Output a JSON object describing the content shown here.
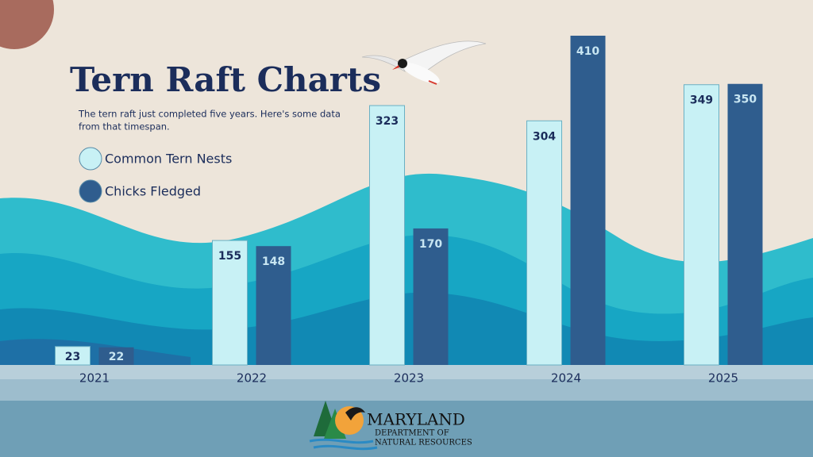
{
  "chart_data": {
    "type": "bar",
    "title": "Tern Raft Charts",
    "subtitle": [
      "The tern raft just completed five years. Here's some data",
      "from that timespan."
    ],
    "categories": [
      "2021",
      "2022",
      "2023",
      "2024",
      "2025"
    ],
    "series": [
      {
        "name": "Common Tern Nests",
        "color": "#c8f1f5",
        "values": [
          23,
          155,
          323,
          304,
          349
        ]
      },
      {
        "name": "Chicks Fledged",
        "color": "#2f5d8e",
        "values": [
          22,
          148,
          170,
          410,
          350
        ]
      }
    ]
  },
  "logo": {
    "lines": [
      "MARYLAND",
      "DEPARTMENT OF",
      "NATURAL RESOURCES"
    ]
  }
}
